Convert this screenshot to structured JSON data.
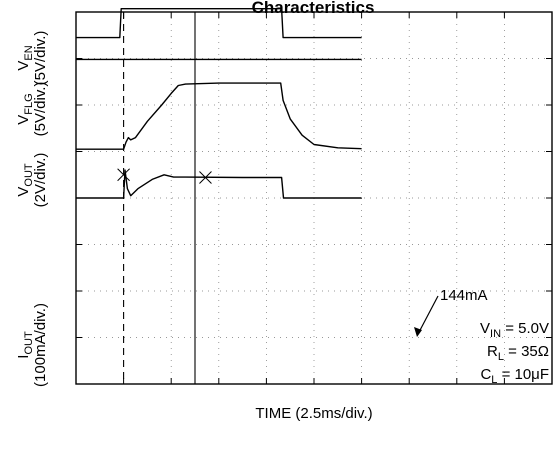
{
  "chart_data": {
    "type": "line",
    "title": "Characteristics",
    "xlabel": "TIME (2.5ms/div.)",
    "x_unit_per_div": 2.5,
    "x_divisions": 10,
    "y_divisions": 8,
    "grid": true,
    "cursors_div": [
      1.0,
      2.5
    ],
    "channels": [
      {
        "name": "V_EN",
        "label_main": "V",
        "label_sub": "EN",
        "scale": "(5V/div.)",
        "points": [
          [
            0,
            7.45
          ],
          [
            0.92,
            7.45
          ],
          [
            0.95,
            8.07
          ],
          [
            4.32,
            8.07
          ],
          [
            4.35,
            7.45
          ],
          [
            6.0,
            7.45
          ]
        ]
      },
      {
        "name": "V_FLG",
        "label_main": "V",
        "label_sub": "FLG",
        "scale": "(5V/div.)",
        "points": [
          [
            0,
            6.98
          ],
          [
            6.0,
            6.98
          ]
        ]
      },
      {
        "name": "V_OUT",
        "label_main": "V",
        "label_sub": "OUT",
        "scale": "(2V/div.)",
        "points": [
          [
            0,
            5.05
          ],
          [
            1.0,
            5.05
          ],
          [
            1.05,
            5.2
          ],
          [
            1.1,
            5.3
          ],
          [
            1.15,
            5.25
          ],
          [
            1.25,
            5.3
          ],
          [
            1.5,
            5.65
          ],
          [
            1.8,
            6.0
          ],
          [
            2.0,
            6.25
          ],
          [
            2.15,
            6.42
          ],
          [
            2.3,
            6.45
          ],
          [
            3.0,
            6.47
          ],
          [
            3.5,
            6.47
          ],
          [
            4.3,
            6.47
          ],
          [
            4.35,
            6.1
          ],
          [
            4.5,
            5.7
          ],
          [
            4.75,
            5.35
          ],
          [
            5.0,
            5.15
          ],
          [
            5.5,
            5.08
          ],
          [
            6.0,
            5.06
          ]
        ]
      },
      {
        "name": "I_OUT",
        "label_main": "I",
        "label_sub": "OUT",
        "scale": "(100mA/div.)",
        "points": [
          [
            0,
            4.0
          ],
          [
            1.0,
            4.0
          ],
          [
            1.03,
            4.6
          ],
          [
            1.08,
            4.2
          ],
          [
            1.15,
            4.05
          ],
          [
            1.3,
            4.2
          ],
          [
            1.6,
            4.4
          ],
          [
            1.85,
            4.5
          ],
          [
            2.05,
            4.45
          ],
          [
            2.3,
            4.45
          ],
          [
            3.5,
            4.44
          ],
          [
            4.32,
            4.44
          ],
          [
            4.36,
            4.0
          ],
          [
            6.0,
            4.0
          ]
        ]
      }
    ],
    "markers": [
      [
        1.0,
        4.5
      ],
      [
        2.72,
        4.44
      ]
    ],
    "annotations": {
      "current_label": "144mA",
      "vin": {
        "main": "V",
        "sub": "IN",
        "value": " = 5.0V"
      },
      "rl": {
        "main": "R",
        "sub": "L",
        "value": " = 35Ω"
      },
      "cl": {
        "main": "C",
        "sub": "L",
        "value": " = 10μF"
      }
    }
  }
}
